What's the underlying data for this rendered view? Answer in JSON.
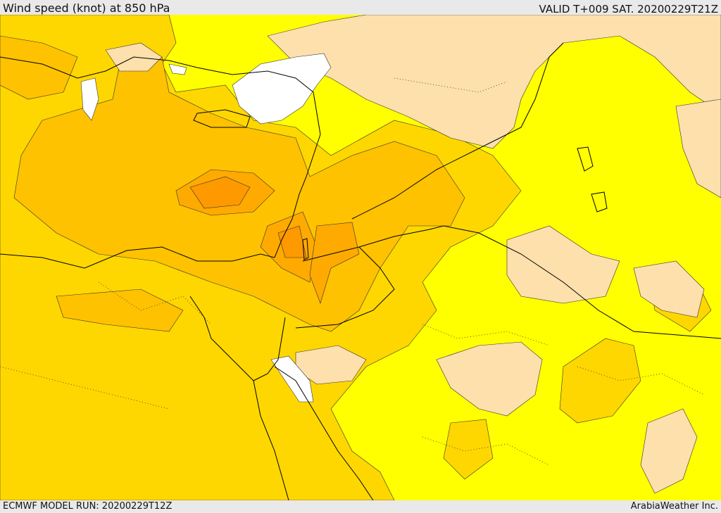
{
  "header": {
    "title": "Wind speed (knot) at 850 hPa",
    "valid": "VALID T+009 SAT. 20200229T21Z"
  },
  "footer": {
    "model_run": "ECMWF MODEL RUN: 20200229T12Z",
    "credit": "ArabiaWeather Inc."
  },
  "map": {
    "field": "wind speed at 850 hPa",
    "unit": "knot",
    "colors": {
      "white": "#ffffff",
      "light_tan": "#fde0ac",
      "yellow": "#ffff00",
      "gold": "#ffd700",
      "light_orange": "#ffc200",
      "orange": "#ffaa00",
      "dark_orange": "#ff9900",
      "boundary": "#000000"
    }
  }
}
